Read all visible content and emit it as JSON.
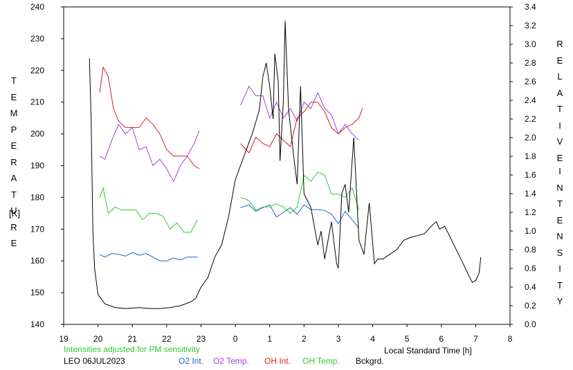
{
  "chart_data": {
    "type": "line",
    "left_axis": {
      "label_letters": [
        "T",
        "E",
        "M",
        "P",
        "E",
        "R",
        "A",
        "T",
        "U",
        "R",
        "E"
      ],
      "unit": "[K]",
      "ylim": [
        140,
        240
      ],
      "ticks": [
        "140",
        "150",
        "160",
        "170",
        "180",
        "190",
        "200",
        "210",
        "220",
        "230",
        "240"
      ]
    },
    "right_axis": {
      "label_letters_1": [
        "R",
        "E",
        "L",
        "A",
        "T",
        "I",
        "V",
        "E"
      ],
      "label_letters_2": [
        "I",
        "N",
        "T",
        "E",
        "N",
        "S",
        "I",
        "T",
        "Y"
      ],
      "ylim": [
        0.0,
        3.4
      ],
      "ticks": [
        "0.0",
        "0.2",
        "0.4",
        "0.6",
        "0.8",
        "1.0",
        "1.2",
        "1.4",
        "1.6",
        "1.8",
        "2.0",
        "2.2",
        "2.4",
        "2.6",
        "2.8",
        "3.0",
        "3.2",
        "3.4"
      ]
    },
    "x_axis": {
      "label": "Local Standard Time [h]",
      "ticks": [
        "19",
        "20",
        "21",
        "22",
        "23",
        "0",
        "1",
        "2",
        "3",
        "4",
        "5",
        "6",
        "7",
        "8"
      ],
      "xlim": [
        19,
        32
      ]
    },
    "series": [
      {
        "name": "O2 Int.",
        "axis": "right",
        "color": "#1a64c8",
        "points": [
          [
            20.05,
            0.75
          ],
          [
            20.2,
            0.72
          ],
          [
            20.4,
            0.76
          ],
          [
            20.6,
            0.75
          ],
          [
            20.8,
            0.73
          ],
          [
            21.0,
            0.77
          ],
          [
            21.2,
            0.74
          ],
          [
            21.4,
            0.76
          ],
          [
            21.6,
            0.72
          ],
          [
            21.8,
            0.68
          ],
          [
            22.0,
            0.68
          ],
          [
            22.2,
            0.71
          ],
          [
            22.4,
            0.69
          ],
          [
            22.6,
            0.72
          ],
          [
            22.9,
            0.72
          ],
          [
            24.15,
            1.25
          ],
          [
            24.4,
            1.28
          ],
          [
            24.6,
            1.21
          ],
          [
            24.8,
            1.25
          ],
          [
            25.0,
            1.28
          ],
          [
            25.2,
            1.15
          ],
          [
            25.4,
            1.2
          ],
          [
            25.6,
            1.25
          ],
          [
            25.8,
            1.18
          ],
          [
            26.0,
            1.28
          ],
          [
            26.2,
            1.23
          ],
          [
            26.4,
            1.23
          ],
          [
            26.6,
            1.22
          ],
          [
            26.8,
            1.18
          ],
          [
            27.0,
            1.08
          ],
          [
            27.2,
            1.21
          ],
          [
            27.4,
            1.12
          ],
          [
            27.6,
            1.03
          ]
        ]
      },
      {
        "name": "O2 Temp.",
        "axis": "left",
        "color": "#9b44d8",
        "points": [
          [
            20.05,
            193
          ],
          [
            20.2,
            192
          ],
          [
            20.4,
            198
          ],
          [
            20.6,
            203
          ],
          [
            20.8,
            200
          ],
          [
            21.0,
            202
          ],
          [
            21.2,
            195
          ],
          [
            21.4,
            196
          ],
          [
            21.6,
            190
          ],
          [
            21.8,
            192
          ],
          [
            22.0,
            189
          ],
          [
            22.2,
            185
          ],
          [
            22.4,
            190
          ],
          [
            22.6,
            193
          ],
          [
            22.8,
            197
          ],
          [
            22.95,
            201
          ],
          [
            24.15,
            209
          ],
          [
            24.4,
            215
          ],
          [
            24.6,
            212
          ],
          [
            24.8,
            212
          ],
          [
            25.0,
            205
          ],
          [
            25.2,
            210
          ],
          [
            25.4,
            205
          ],
          [
            25.6,
            208
          ],
          [
            25.8,
            204
          ],
          [
            26.0,
            210
          ],
          [
            26.2,
            208
          ],
          [
            26.4,
            213
          ],
          [
            26.6,
            208
          ],
          [
            26.8,
            206
          ],
          [
            27.0,
            200
          ],
          [
            27.2,
            203
          ],
          [
            27.4,
            200
          ],
          [
            27.6,
            198
          ]
        ]
      },
      {
        "name": "OH Int.",
        "axis": "left",
        "color": "#d81e1e",
        "points": [
          [
            20.05,
            213
          ],
          [
            20.15,
            221
          ],
          [
            20.3,
            218
          ],
          [
            20.45,
            208
          ],
          [
            20.6,
            204
          ],
          [
            20.8,
            202
          ],
          [
            21.0,
            202
          ],
          [
            21.2,
            202
          ],
          [
            21.4,
            205
          ],
          [
            21.6,
            203
          ],
          [
            21.8,
            200
          ],
          [
            22.0,
            195
          ],
          [
            22.2,
            193
          ],
          [
            22.4,
            193
          ],
          [
            22.6,
            193
          ],
          [
            22.8,
            190
          ],
          [
            22.95,
            189
          ],
          [
            24.15,
            197
          ],
          [
            24.4,
            194
          ],
          [
            24.6,
            199
          ],
          [
            24.8,
            197
          ],
          [
            25.0,
            196
          ],
          [
            25.2,
            200
          ],
          [
            25.4,
            198
          ],
          [
            25.6,
            196
          ],
          [
            25.8,
            205
          ],
          [
            26.0,
            207
          ],
          [
            26.2,
            210
          ],
          [
            26.4,
            210
          ],
          [
            26.6,
            207
          ],
          [
            26.8,
            202
          ],
          [
            27.0,
            200
          ],
          [
            27.2,
            202
          ],
          [
            27.4,
            203
          ],
          [
            27.6,
            205
          ],
          [
            27.7,
            208
          ]
        ]
      },
      {
        "name": "OH Temp.",
        "axis": "left",
        "color": "#32c832",
        "points": [
          [
            20.05,
            180
          ],
          [
            20.15,
            183
          ],
          [
            20.3,
            175
          ],
          [
            20.5,
            177
          ],
          [
            20.7,
            176
          ],
          [
            20.9,
            176
          ],
          [
            21.1,
            176
          ],
          [
            21.3,
            173
          ],
          [
            21.5,
            175
          ],
          [
            21.7,
            175
          ],
          [
            21.9,
            174
          ],
          [
            22.1,
            170
          ],
          [
            22.3,
            172
          ],
          [
            22.5,
            169
          ],
          [
            22.7,
            169
          ],
          [
            22.9,
            173
          ],
          [
            24.15,
            180
          ],
          [
            24.4,
            179
          ],
          [
            24.6,
            176
          ],
          [
            24.8,
            177
          ],
          [
            25.0,
            177
          ],
          [
            25.2,
            178
          ],
          [
            25.4,
            177
          ],
          [
            25.6,
            175
          ],
          [
            25.8,
            177
          ],
          [
            26.0,
            187
          ],
          [
            26.2,
            185
          ],
          [
            26.4,
            188
          ],
          [
            26.6,
            187
          ],
          [
            26.8,
            181
          ],
          [
            27.0,
            181
          ],
          [
            27.2,
            180
          ],
          [
            27.4,
            183
          ],
          [
            27.6,
            176
          ]
        ]
      },
      {
        "name": "Bckgrd.",
        "axis": "right",
        "color": "#000000",
        "points": [
          [
            19.75,
            2.85
          ],
          [
            19.8,
            2.2
          ],
          [
            19.85,
            1.0
          ],
          [
            19.9,
            0.6
          ],
          [
            20.0,
            0.32
          ],
          [
            20.2,
            0.22
          ],
          [
            20.5,
            0.18
          ],
          [
            20.8,
            0.17
          ],
          [
            21.2,
            0.18
          ],
          [
            21.5,
            0.17
          ],
          [
            21.8,
            0.17
          ],
          [
            22.1,
            0.18
          ],
          [
            22.4,
            0.2
          ],
          [
            22.7,
            0.24
          ],
          [
            22.85,
            0.28
          ],
          [
            23.0,
            0.4
          ],
          [
            23.2,
            0.5
          ],
          [
            23.4,
            0.72
          ],
          [
            23.6,
            0.85
          ],
          [
            23.8,
            1.15
          ],
          [
            24.0,
            1.55
          ],
          [
            24.1,
            1.65
          ],
          [
            24.3,
            1.85
          ],
          [
            24.5,
            2.05
          ],
          [
            24.7,
            2.3
          ],
          [
            24.8,
            2.65
          ],
          [
            24.9,
            2.8
          ],
          [
            25.0,
            2.55
          ],
          [
            25.1,
            2.2
          ],
          [
            25.15,
            2.9
          ],
          [
            25.25,
            2.6
          ],
          [
            25.3,
            1.75
          ],
          [
            25.4,
            2.4
          ],
          [
            25.45,
            3.25
          ],
          [
            25.55,
            2.3
          ],
          [
            25.7,
            1.8
          ],
          [
            25.8,
            1.5
          ],
          [
            25.9,
            2.55
          ],
          [
            26.0,
            1.4
          ],
          [
            26.2,
            1.25
          ],
          [
            26.4,
            0.85
          ],
          [
            26.5,
            1.0
          ],
          [
            26.6,
            0.7
          ],
          [
            26.8,
            1.1
          ],
          [
            26.95,
            0.65
          ],
          [
            27.0,
            0.6
          ],
          [
            27.1,
            1.4
          ],
          [
            27.2,
            1.5
          ],
          [
            27.3,
            1.2
          ],
          [
            27.45,
            2.0
          ],
          [
            27.6,
            0.9
          ],
          [
            27.75,
            0.75
          ],
          [
            27.8,
            0.95
          ],
          [
            27.9,
            1.3
          ],
          [
            28.05,
            0.65
          ],
          [
            28.15,
            0.7
          ],
          [
            28.3,
            0.7
          ],
          [
            28.5,
            0.75
          ],
          [
            28.7,
            0.8
          ],
          [
            28.9,
            0.9
          ],
          [
            29.1,
            0.93
          ],
          [
            29.3,
            0.95
          ],
          [
            29.5,
            0.97
          ],
          [
            29.7,
            1.05
          ],
          [
            29.85,
            1.1
          ],
          [
            29.95,
            1.02
          ],
          [
            30.1,
            1.05
          ],
          [
            30.3,
            0.9
          ],
          [
            30.5,
            0.75
          ],
          [
            30.7,
            0.6
          ],
          [
            30.8,
            0.52
          ],
          [
            30.9,
            0.45
          ],
          [
            31.0,
            0.47
          ],
          [
            31.1,
            0.55
          ],
          [
            31.15,
            0.72
          ]
        ]
      }
    ],
    "legend": [
      "O2 Int.",
      "O2 Temp.",
      "OH Int.",
      "OH Temp.",
      "Bckgrd."
    ],
    "legend_placement": "bottom",
    "grid": false
  },
  "notes": {
    "adjust_text": "Intensities adjusted for PM sensitivity",
    "site_date": "LEO 06JUL2023"
  }
}
